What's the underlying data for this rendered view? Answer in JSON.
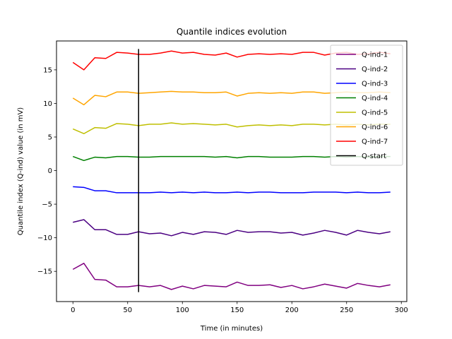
{
  "chart_data": {
    "type": "line",
    "title": "Quantile indices evolution",
    "xlabel": "Time (in minutes)",
    "ylabel": "Quantile index (Q-ind) value (in mV)",
    "xlim": [
      -15,
      305
    ],
    "ylim": [
      -19.5,
      19.3
    ],
    "xticks": [
      0,
      50,
      100,
      150,
      200,
      250,
      300
    ],
    "yticks": [
      -15,
      -10,
      -5,
      0,
      5,
      10,
      15
    ],
    "grid": false,
    "legend_position": "upper right",
    "x": [
      0,
      10,
      20,
      30,
      40,
      50,
      60,
      70,
      80,
      90,
      100,
      110,
      120,
      130,
      140,
      150,
      160,
      170,
      180,
      190,
      200,
      210,
      220,
      230,
      240,
      250,
      260,
      270,
      280,
      290
    ],
    "series": [
      {
        "name": "Q-ind-1",
        "color": "#800080",
        "values": [
          -14.7,
          -13.8,
          -16.2,
          -16.3,
          -17.3,
          -17.3,
          -17.1,
          -17.3,
          -17.1,
          -17.7,
          -17.2,
          -17.6,
          -17.1,
          -17.2,
          -17.3,
          -16.6,
          -17.1,
          -17.1,
          -17.0,
          -17.4,
          -17.1,
          -17.6,
          -17.3,
          -16.9,
          -17.2,
          -17.5,
          -16.8,
          -17.1,
          -17.3,
          -17.0
        ]
      },
      {
        "name": "Q-ind-2",
        "color": "#4b0082",
        "values": [
          -7.7,
          -7.3,
          -8.8,
          -8.8,
          -9.5,
          -9.5,
          -9.1,
          -9.4,
          -9.3,
          -9.7,
          -9.2,
          -9.5,
          -9.1,
          -9.2,
          -9.5,
          -8.9,
          -9.2,
          -9.1,
          -9.1,
          -9.3,
          -9.2,
          -9.6,
          -9.3,
          -8.9,
          -9.2,
          -9.6,
          -8.9,
          -9.2,
          -9.4,
          -9.1
        ]
      },
      {
        "name": "Q-ind-3",
        "color": "#0000ff",
        "values": [
          -2.4,
          -2.5,
          -3.0,
          -3.0,
          -3.3,
          -3.3,
          -3.3,
          -3.3,
          -3.2,
          -3.3,
          -3.2,
          -3.3,
          -3.2,
          -3.3,
          -3.3,
          -3.2,
          -3.3,
          -3.2,
          -3.2,
          -3.3,
          -3.3,
          -3.3,
          -3.2,
          -3.2,
          -3.2,
          -3.3,
          -3.2,
          -3.3,
          -3.3,
          -3.2
        ]
      },
      {
        "name": "Q-ind-4",
        "color": "#008000",
        "values": [
          2.1,
          1.5,
          2.0,
          1.9,
          2.1,
          2.1,
          2.0,
          2.0,
          2.1,
          2.1,
          2.1,
          2.1,
          2.1,
          2.0,
          2.1,
          1.9,
          2.1,
          2.1,
          2.0,
          2.0,
          2.0,
          2.1,
          2.1,
          2.0,
          2.1,
          2.0,
          2.1,
          2.0,
          2.1,
          2.1
        ]
      },
      {
        "name": "Q-ind-5",
        "color": "#bfbf00",
        "values": [
          6.2,
          5.5,
          6.4,
          6.3,
          7.0,
          6.9,
          6.7,
          6.9,
          6.9,
          7.1,
          6.9,
          7.0,
          6.9,
          6.8,
          6.9,
          6.5,
          6.7,
          6.8,
          6.7,
          6.8,
          6.7,
          6.9,
          6.9,
          6.8,
          6.9,
          6.8,
          6.9,
          6.8,
          6.9,
          6.9
        ]
      },
      {
        "name": "Q-ind-6",
        "color": "#ffa500",
        "values": [
          10.8,
          9.8,
          11.2,
          11.0,
          11.7,
          11.7,
          11.5,
          11.6,
          11.7,
          11.8,
          11.7,
          11.7,
          11.6,
          11.6,
          11.7,
          11.1,
          11.5,
          11.6,
          11.5,
          11.6,
          11.5,
          11.7,
          11.7,
          11.5,
          11.6,
          11.7,
          11.6,
          11.6,
          11.7,
          11.6
        ]
      },
      {
        "name": "Q-ind-7",
        "color": "#ff0000",
        "values": [
          16.1,
          15.0,
          16.8,
          16.7,
          17.6,
          17.5,
          17.3,
          17.3,
          17.5,
          17.8,
          17.5,
          17.6,
          17.3,
          17.2,
          17.5,
          16.9,
          17.3,
          17.4,
          17.3,
          17.4,
          17.3,
          17.6,
          17.6,
          17.2,
          17.5,
          17.6,
          17.3,
          17.4,
          17.6,
          17.4
        ]
      }
    ],
    "marker": {
      "name": "Q-start",
      "color": "#000000",
      "x": 60,
      "y_range": [
        -18.1,
        18.1
      ]
    }
  }
}
